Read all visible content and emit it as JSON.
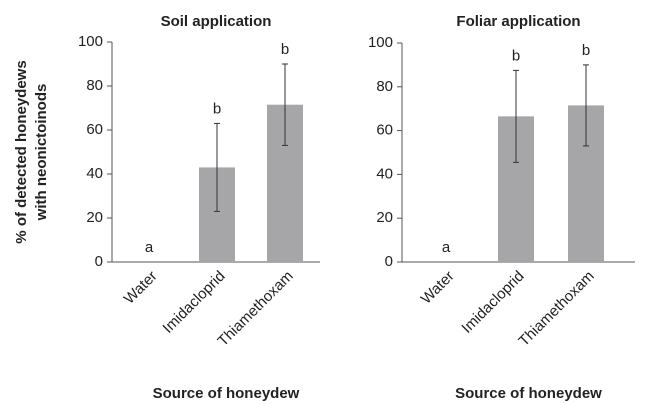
{
  "chart_data": [
    {
      "type": "bar",
      "title": "Soil application",
      "y_label": [
        "% of detected honeydews",
        "with neonictoinods"
      ],
      "x_label": "Source of honeydew",
      "categories": [
        "Water",
        "Imidacloprid",
        "Thiamethoxam"
      ],
      "values": [
        0,
        43,
        71.5
      ],
      "errors": [
        0,
        20,
        18.5
      ],
      "annotations": [
        "a",
        "b",
        "b"
      ],
      "color": "#a6a6a8",
      "ylim": [
        0,
        100
      ],
      "yticks": [
        0,
        20,
        40,
        60,
        80,
        100
      ]
    },
    {
      "type": "bar",
      "title": "Foliar application",
      "x_label": "Source of honeydew",
      "categories": [
        "Water",
        "Imidacloprid",
        "Thiamethoxam"
      ],
      "values": [
        0,
        66.5,
        71.5
      ],
      "errors": [
        0,
        21,
        18.5
      ],
      "annotations": [
        "a",
        "b",
        "b"
      ],
      "color": "#a6a6a8",
      "ylim": [
        0,
        100
      ],
      "yticks": [
        0,
        20,
        40,
        60,
        80,
        100
      ]
    }
  ]
}
